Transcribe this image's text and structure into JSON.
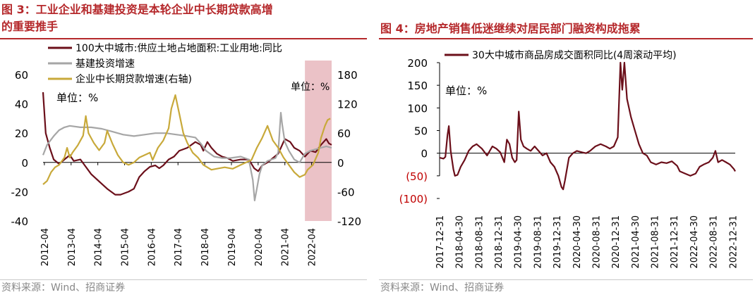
{
  "left": {
    "title_line1": "图 3：工业企业和基建投资是本轮企业中长期贷款高增",
    "title_line2": "的重要推手",
    "source": "资料来源：Wind、招商证券",
    "unit_left": "单位：%",
    "unit_right": "单位：%"
  },
  "right": {
    "title": "图 4：房地产销售低迷继续对居民部门融资构成拖累",
    "source": "资料来源：Wind、招商证券",
    "unit": "单位：%"
  },
  "colors": {
    "dark_red": "#6b0f1a",
    "gray": "#a6a6a6",
    "gold": "#c8a93a",
    "highlight": "#e8b7bd",
    "title_red": "#b5282b"
  },
  "chart_data": [
    {
      "type": "line",
      "legend_position": "top-left",
      "grid": false,
      "x_ticks": [
        "2012-04",
        "2013-04",
        "2014-04",
        "2015-04",
        "2016-04",
        "2017-04",
        "2018-04",
        "2019-04",
        "2020-04",
        "2021-04",
        "2022-04"
      ],
      "y_left": {
        "ticks": [
          "60",
          "40",
          "20",
          "0",
          "-20",
          "-40"
        ],
        "range": [
          -40,
          60
        ]
      },
      "y_right": {
        "ticks": [
          "180",
          "120",
          "60",
          "0",
          "-60",
          "-120"
        ],
        "range": [
          -120,
          180
        ]
      },
      "highlight_range": [
        "2022-01",
        "2023-01"
      ],
      "series": [
        {
          "name": "100大中城市:供应土地占地面积:工业用地:同比",
          "axis": "left",
          "color": "#6b0f1a",
          "points": [
            [
              2012.2,
              48
            ],
            [
              2012.3,
              20
            ],
            [
              2012.45,
              10
            ],
            [
              2012.6,
              2
            ],
            [
              2012.8,
              -1
            ],
            [
              2013.0,
              2
            ],
            [
              2013.2,
              5
            ],
            [
              2013.35,
              1
            ],
            [
              2013.6,
              2
            ],
            [
              2013.8,
              -3
            ],
            [
              2014.0,
              -8
            ],
            [
              2014.3,
              -13
            ],
            [
              2014.6,
              -18
            ],
            [
              2014.9,
              -22
            ],
            [
              2015.1,
              -22
            ],
            [
              2015.4,
              -20
            ],
            [
              2015.6,
              -18
            ],
            [
              2015.8,
              -10
            ],
            [
              2016.0,
              -6
            ],
            [
              2016.2,
              -3
            ],
            [
              2016.4,
              -2
            ],
            [
              2016.55,
              -4
            ],
            [
              2016.7,
              -2
            ],
            [
              2016.9,
              2
            ],
            [
              2017.1,
              4
            ],
            [
              2017.3,
              8
            ],
            [
              2017.6,
              10
            ],
            [
              2017.9,
              14
            ],
            [
              2018.1,
              12
            ],
            [
              2018.2,
              8
            ],
            [
              2018.35,
              14
            ],
            [
              2018.5,
              10
            ],
            [
              2018.7,
              6
            ],
            [
              2018.9,
              4
            ],
            [
              2019.1,
              3
            ],
            [
              2019.3,
              1
            ],
            [
              2019.6,
              2
            ],
            [
              2019.9,
              2
            ],
            [
              2020.1,
              -4
            ],
            [
              2020.25,
              -6
            ],
            [
              2020.4,
              -2
            ],
            [
              2020.6,
              0
            ],
            [
              2020.8,
              3
            ],
            [
              2021.0,
              6
            ],
            [
              2021.25,
              16
            ],
            [
              2021.45,
              14
            ],
            [
              2021.6,
              10
            ],
            [
              2021.8,
              8
            ],
            [
              2022.0,
              4
            ],
            [
              2022.2,
              8
            ],
            [
              2022.4,
              7
            ],
            [
              2022.6,
              12
            ],
            [
              2022.8,
              16
            ],
            [
              2022.9,
              13
            ],
            [
              2023.0,
              12
            ]
          ]
        },
        {
          "name": "基建投资增速",
          "axis": "left",
          "color": "#a6a6a6",
          "points": [
            [
              2012.2,
              5
            ],
            [
              2012.35,
              12
            ],
            [
              2012.6,
              18
            ],
            [
              2012.8,
              22
            ],
            [
              2013.0,
              24
            ],
            [
              2013.2,
              25
            ],
            [
              2013.6,
              24
            ],
            [
              2014.0,
              24
            ],
            [
              2014.4,
              23
            ],
            [
              2014.8,
              21
            ],
            [
              2015.2,
              19
            ],
            [
              2015.6,
              18
            ],
            [
              2016.0,
              19
            ],
            [
              2016.4,
              20
            ],
            [
              2016.8,
              20
            ],
            [
              2017.2,
              19
            ],
            [
              2017.6,
              18
            ],
            [
              2017.9,
              17
            ],
            [
              2018.1,
              13
            ],
            [
              2018.3,
              8
            ],
            [
              2018.6,
              4
            ],
            [
              2018.9,
              3
            ],
            [
              2019.2,
              3
            ],
            [
              2019.6,
              4
            ],
            [
              2019.9,
              2
            ],
            [
              2020.05,
              -12
            ],
            [
              2020.12,
              -26
            ],
            [
              2020.2,
              -18
            ],
            [
              2020.3,
              -8
            ],
            [
              2020.4,
              -2
            ],
            [
              2020.6,
              1
            ],
            [
              2020.9,
              3
            ],
            [
              2021.0,
              7
            ],
            [
              2021.1,
              34
            ],
            [
              2021.15,
              26
            ],
            [
              2021.25,
              14
            ],
            [
              2021.4,
              8
            ],
            [
              2021.6,
              2
            ],
            [
              2021.8,
              0
            ],
            [
              2022.0,
              6
            ],
            [
              2022.2,
              8
            ],
            [
              2022.4,
              9
            ],
            [
              2022.6,
              10
            ],
            [
              2022.8,
              11
            ],
            [
              2023.0,
              10
            ]
          ]
        },
        {
          "name": "企业中长期贷款增速(右轴)",
          "axis": "right",
          "color": "#c8a93a",
          "points": [
            [
              2012.2,
              -45
            ],
            [
              2012.35,
              -38
            ],
            [
              2012.5,
              -20
            ],
            [
              2012.65,
              -10
            ],
            [
              2012.8,
              -5
            ],
            [
              2013.0,
              10
            ],
            [
              2013.1,
              30
            ],
            [
              2013.2,
              10
            ],
            [
              2013.3,
              20
            ],
            [
              2013.5,
              35
            ],
            [
              2013.7,
              55
            ],
            [
              2013.8,
              95
            ],
            [
              2013.9,
              60
            ],
            [
              2014.1,
              40
            ],
            [
              2014.3,
              25
            ],
            [
              2014.5,
              40
            ],
            [
              2014.6,
              65
            ],
            [
              2014.8,
              38
            ],
            [
              2015.0,
              15
            ],
            [
              2015.2,
              0
            ],
            [
              2015.4,
              -5
            ],
            [
              2015.6,
              0
            ],
            [
              2015.8,
              10
            ],
            [
              2016.0,
              15
            ],
            [
              2016.2,
              20
            ],
            [
              2016.3,
              5
            ],
            [
              2016.5,
              30
            ],
            [
              2016.7,
              45
            ],
            [
              2016.9,
              70
            ],
            [
              2017.0,
              110
            ],
            [
              2017.15,
              138
            ],
            [
              2017.3,
              100
            ],
            [
              2017.45,
              60
            ],
            [
              2017.6,
              40
            ],
            [
              2017.8,
              20
            ],
            [
              2018.0,
              10
            ],
            [
              2018.2,
              -5
            ],
            [
              2018.5,
              -15
            ],
            [
              2018.8,
              -12
            ],
            [
              2019.0,
              -10
            ],
            [
              2019.3,
              -13
            ],
            [
              2019.6,
              -5
            ],
            [
              2019.8,
              0
            ],
            [
              2020.0,
              5
            ],
            [
              2020.2,
              30
            ],
            [
              2020.4,
              50
            ],
            [
              2020.6,
              75
            ],
            [
              2020.8,
              45
            ],
            [
              2021.0,
              30
            ],
            [
              2021.2,
              10
            ],
            [
              2021.4,
              -5
            ],
            [
              2021.6,
              -20
            ],
            [
              2021.8,
              -30
            ],
            [
              2022.0,
              -25
            ],
            [
              2022.1,
              -15
            ],
            [
              2022.3,
              -5
            ],
            [
              2022.5,
              20
            ],
            [
              2022.6,
              50
            ],
            [
              2022.75,
              75
            ],
            [
              2022.85,
              87
            ],
            [
              2022.95,
              90
            ]
          ]
        }
      ]
    },
    {
      "type": "line",
      "legend_position": "top-left",
      "grid": false,
      "x_ticks": [
        "2017-12-31",
        "2018-04-30",
        "2018-08-31",
        "2018-12-31",
        "2019-04-30",
        "2019-08-31",
        "2019-12-31",
        "2020-04-30",
        "2020-08-31",
        "2020-12-31",
        "2021-04-30",
        "2021-08-31",
        "2021-12-31",
        "2022-04-30",
        "2022-08-31",
        "2022-12-31"
      ],
      "y_ticks": [
        "200",
        "150",
        "100",
        "50",
        "0",
        "(50)",
        "(100)"
      ],
      "y_range": [
        -100,
        200
      ],
      "series": [
        {
          "name": "30大中城市商品房成交面积同比(4周滚动平均)",
          "color": "#6b0f1a",
          "points": [
            [
              0.0,
              -10
            ],
            [
              0.15,
              -12
            ],
            [
              0.22,
              -8
            ],
            [
              0.3,
              40
            ],
            [
              0.35,
              60
            ],
            [
              0.42,
              5
            ],
            [
              0.52,
              -35
            ],
            [
              0.58,
              -50
            ],
            [
              0.68,
              -48
            ],
            [
              0.8,
              -30
            ],
            [
              0.95,
              -15
            ],
            [
              1.1,
              5
            ],
            [
              1.25,
              15
            ],
            [
              1.4,
              20
            ],
            [
              1.6,
              10
            ],
            [
              1.8,
              -5
            ],
            [
              2.0,
              15
            ],
            [
              2.15,
              10
            ],
            [
              2.3,
              2
            ],
            [
              2.45,
              -20
            ],
            [
              2.55,
              30
            ],
            [
              2.65,
              20
            ],
            [
              2.75,
              -10
            ],
            [
              2.85,
              -20
            ],
            [
              2.92,
              -15
            ],
            [
              3.0,
              92
            ],
            [
              3.08,
              30
            ],
            [
              3.18,
              15
            ],
            [
              3.3,
              10
            ],
            [
              3.45,
              5
            ],
            [
              3.6,
              15
            ],
            [
              3.75,
              5
            ],
            [
              3.9,
              -5
            ],
            [
              4.05,
              0
            ],
            [
              4.2,
              -20
            ],
            [
              4.35,
              -30
            ],
            [
              4.5,
              -50
            ],
            [
              4.62,
              -75
            ],
            [
              4.68,
              -80
            ],
            [
              4.75,
              -60
            ],
            [
              4.9,
              -10
            ],
            [
              5.05,
              0
            ],
            [
              5.2,
              5
            ],
            [
              5.4,
              2
            ],
            [
              5.55,
              0
            ],
            [
              5.7,
              5
            ],
            [
              5.9,
              15
            ],
            [
              6.1,
              20
            ],
            [
              6.3,
              15
            ],
            [
              6.45,
              10
            ],
            [
              6.6,
              15
            ],
            [
              6.75,
              35
            ],
            [
              6.85,
              200
            ],
            [
              6.92,
              140
            ],
            [
              7.0,
              200
            ],
            [
              7.1,
              120
            ],
            [
              7.25,
              80
            ],
            [
              7.4,
              50
            ],
            [
              7.55,
              20
            ],
            [
              7.7,
              0
            ],
            [
              7.85,
              -5
            ],
            [
              8.0,
              -20
            ],
            [
              8.2,
              -25
            ],
            [
              8.4,
              -20
            ],
            [
              8.6,
              -22
            ],
            [
              8.8,
              -18
            ],
            [
              9.0,
              -28
            ],
            [
              9.1,
              -40
            ],
            [
              9.3,
              -45
            ],
            [
              9.5,
              -50
            ],
            [
              9.7,
              -45
            ],
            [
              9.85,
              -30
            ],
            [
              10.0,
              -25
            ],
            [
              10.2,
              -20
            ],
            [
              10.35,
              -10
            ],
            [
              10.45,
              5
            ],
            [
              10.55,
              -20
            ],
            [
              10.7,
              -15
            ],
            [
              10.85,
              -20
            ],
            [
              11.0,
              -25
            ],
            [
              11.15,
              -35
            ],
            [
              11.2,
              -40
            ]
          ]
        }
      ]
    }
  ]
}
